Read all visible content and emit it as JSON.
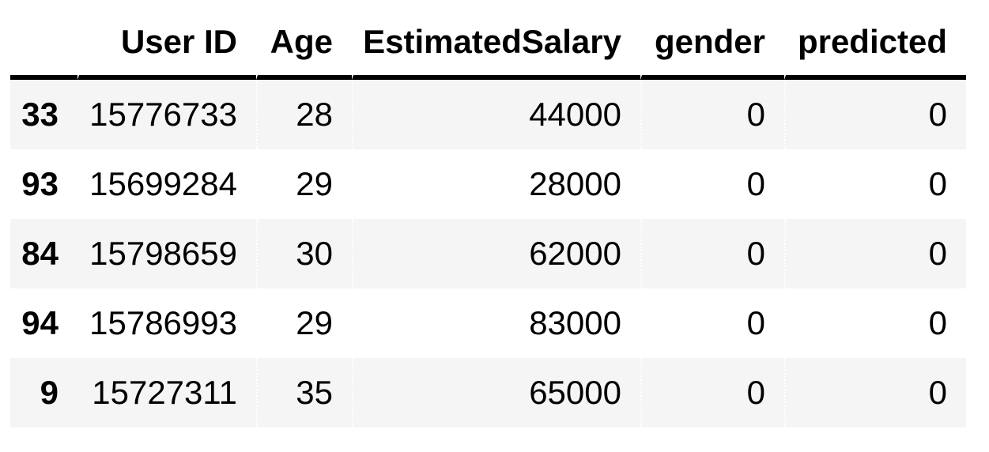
{
  "dataframe": {
    "columns": {
      "index": "",
      "user_id": "User ID",
      "age": "Age",
      "estimated_salary": "EstimatedSalary",
      "gender": "gender",
      "predicted": "predicted"
    },
    "rows": [
      {
        "index": "33",
        "user_id": "15776733",
        "age": "28",
        "estimated_salary": "44000",
        "gender": "0",
        "predicted": "0"
      },
      {
        "index": "93",
        "user_id": "15699284",
        "age": "29",
        "estimated_salary": "28000",
        "gender": "0",
        "predicted": "0"
      },
      {
        "index": "84",
        "user_id": "15798659",
        "age": "30",
        "estimated_salary": "62000",
        "gender": "0",
        "predicted": "0"
      },
      {
        "index": "94",
        "user_id": "15786993",
        "age": "29",
        "estimated_salary": "83000",
        "gender": "0",
        "predicted": "0"
      },
      {
        "index": "9",
        "user_id": "15727311",
        "age": "35",
        "estimated_salary": "65000",
        "gender": "0",
        "predicted": "0"
      }
    ],
    "colors": {
      "stripe": "#f5f5f5",
      "text": "#000000",
      "header_rule": "#000000",
      "background": "#ffffff"
    }
  }
}
